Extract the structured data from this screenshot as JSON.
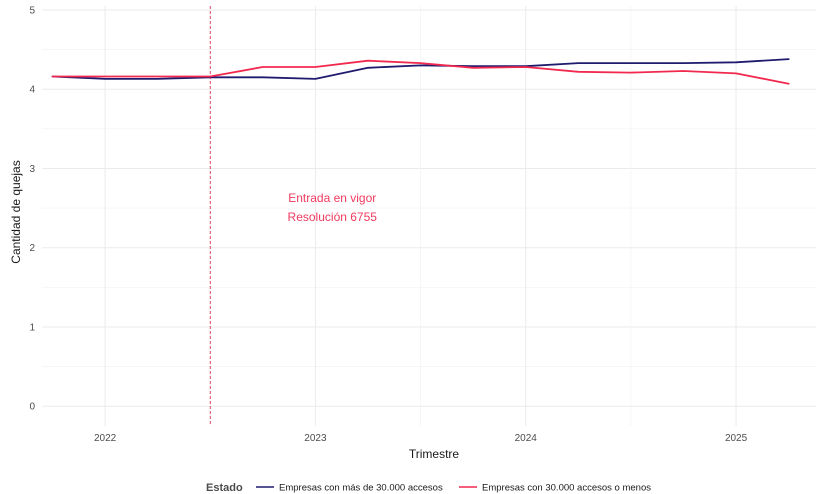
{
  "chart_data": {
    "type": "line",
    "xlabel": "Trimestre",
    "ylabel": "Cantidad de quejas",
    "ylim": [
      -0.25,
      5.05
    ],
    "xlim": [
      2021.7,
      2025.38
    ],
    "x_ticks": [
      2022,
      2023,
      2024,
      2025
    ],
    "x_tick_labels": [
      "2022",
      "2023",
      "2024",
      "2025"
    ],
    "y_ticks": [
      0,
      1,
      2,
      3,
      4,
      5
    ],
    "y_tick_labels": [
      "0",
      "1",
      "2",
      "3",
      "4",
      "5"
    ],
    "grid": true,
    "legend_position": "bottom",
    "legend_title": "Estado",
    "vline": {
      "x": 2022.5,
      "color": "#e0305a"
    },
    "annotation": {
      "lines": [
        "Entrada en vigor",
        "Resolución 6755"
      ],
      "x": 2023.08,
      "y": 2.5,
      "color": "#f03a5f"
    },
    "x": [
      2021.75,
      2022.0,
      2022.25,
      2022.5,
      2022.75,
      2023.0,
      2023.25,
      2023.5,
      2023.75,
      2024.0,
      2024.25,
      2024.5,
      2024.75,
      2025.0,
      2025.25
    ],
    "series": [
      {
        "name": "Empresas con más de 30.000 accesos",
        "color": "#1f1b6e",
        "values": [
          4.16,
          4.13,
          4.13,
          4.15,
          4.15,
          4.13,
          4.27,
          4.3,
          4.29,
          4.29,
          4.33,
          4.33,
          4.33,
          4.34,
          4.38
        ]
      },
      {
        "name": "Empresas con 30.000 accesos o menos",
        "color": "#f2294e",
        "values": [
          4.16,
          4.16,
          4.16,
          4.16,
          4.28,
          4.28,
          4.36,
          4.33,
          4.27,
          4.28,
          4.22,
          4.21,
          4.23,
          4.2,
          4.07
        ]
      }
    ]
  }
}
